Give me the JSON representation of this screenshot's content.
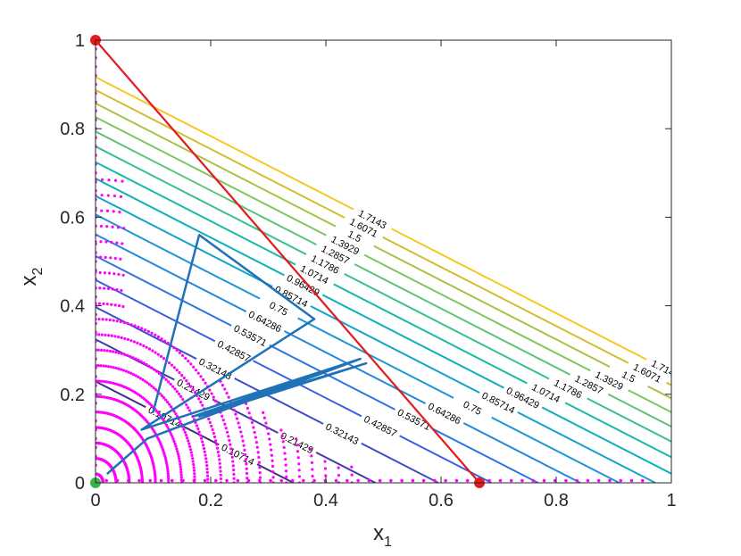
{
  "chart_data": {
    "type": "contour",
    "xlabel": "x",
    "xlabel_sub": "1",
    "ylabel": "x",
    "ylabel_sub": "2",
    "xlim": [
      0,
      1
    ],
    "ylim": [
      0,
      1
    ],
    "x_ticks": [
      0,
      0.2,
      0.4,
      0.6,
      0.8,
      1
    ],
    "x_tick_labels": [
      "0",
      "0.2",
      "0.4",
      "0.6",
      "0.8",
      "1"
    ],
    "y_ticks": [
      0,
      0.2,
      0.4,
      0.6,
      0.8,
      1
    ],
    "y_tick_labels": [
      "0",
      "0.2",
      "0.4",
      "0.6",
      "0.8",
      "1"
    ],
    "grid": false,
    "contour_levels": [
      0.10714,
      0.21429,
      0.32143,
      0.42857,
      0.53571,
      0.64286,
      0.75,
      0.85714,
      0.96429,
      1.0714,
      1.1786,
      1.2857,
      1.3929,
      1.5,
      1.6071,
      1.7143
    ],
    "contour_level_labels": [
      "0.10714",
      "0.21429",
      "0.32143",
      "0.42857",
      "0.53571",
      "0.64286",
      "0.75",
      "0.85714",
      "0.96429",
      "1.0714",
      "1.1786",
      "1.2857",
      "1.3929",
      "1.5",
      "1.6071",
      "1.7143"
    ],
    "contour_colors": [
      "#3e2f84",
      "#3f3ca6",
      "#3d4dc8",
      "#3a5fe0",
      "#2f74e4",
      "#2387dc",
      "#1b97d3",
      "#12a4c8",
      "#0bb0b8",
      "#18baa5",
      "#37c190",
      "#5ac57a",
      "#80c660",
      "#a9c246",
      "#d2bd33",
      "#f7c724"
    ],
    "constraint_line": {
      "x": [
        0,
        0.6667
      ],
      "y": [
        1,
        0
      ],
      "color": "#e41a1c"
    },
    "marked_points": [
      {
        "x": 0,
        "y": 1,
        "color": "#e41a1c"
      },
      {
        "x": 0.6667,
        "y": 0,
        "color": "#e41a1c"
      },
      {
        "x": 0,
        "y": 0,
        "color": "#39b54a"
      }
    ],
    "trajectory": {
      "color": "#1f72b8",
      "x": [
        0.18,
        0.1,
        0.18,
        0.38,
        0.08,
        0.46,
        0.18,
        0.47,
        0.17,
        0.46,
        0.09,
        0.02
      ],
      "y": [
        0.56,
        0.16,
        0.56,
        0.37,
        0.12,
        0.28,
        0.15,
        0.27,
        0.15,
        0.28,
        0.1,
        0.02
      ]
    },
    "sample_points_color": "#ff00ff"
  }
}
